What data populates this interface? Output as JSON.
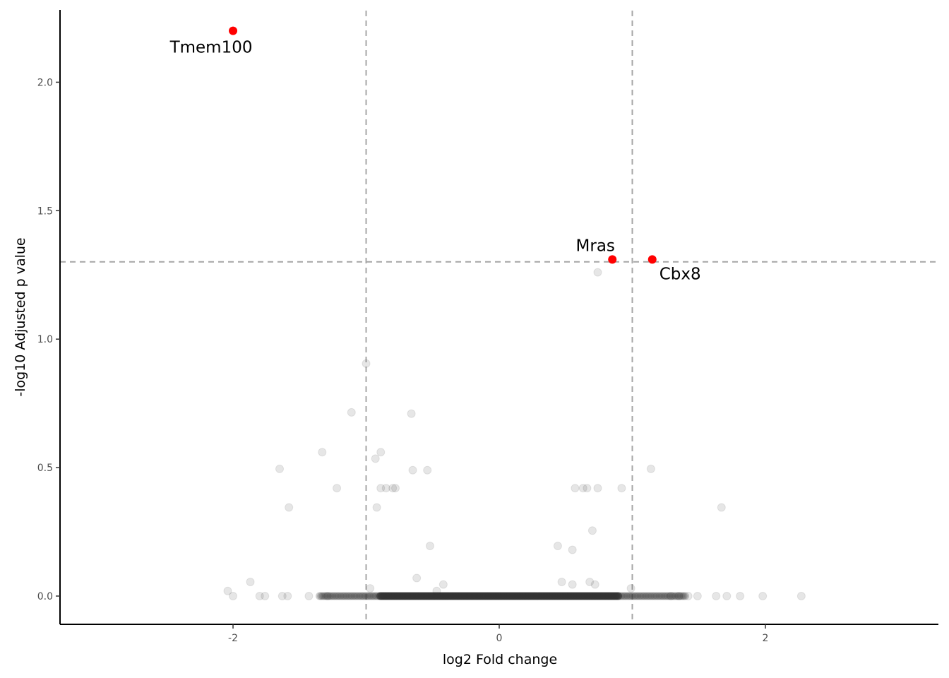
{
  "chart_data": {
    "type": "scatter",
    "title": "",
    "xlabel": "log2 Fold change",
    "ylabel": "-log10 Adjusted p value",
    "xlim": [
      -3.3,
      3.3
    ],
    "ylim": [
      -0.11,
      2.32
    ],
    "x_ticks": [
      {
        "value": -2,
        "label": "-2"
      },
      {
        "value": 0,
        "label": "0"
      },
      {
        "value": 2,
        "label": "2"
      }
    ],
    "y_ticks": [
      {
        "value": 0,
        "label": "0.0"
      },
      {
        "value": 0.5,
        "label": "0.5"
      },
      {
        "value": 1.0,
        "label": "1.0"
      },
      {
        "value": 1.5,
        "label": "1.5"
      },
      {
        "value": 2.0,
        "label": "2.0"
      }
    ],
    "thresholds": {
      "vertical": [
        -1,
        1
      ],
      "horizontal": [
        1.301
      ]
    },
    "grid": false,
    "colors": {
      "significant": "#ff0000",
      "background_points": "#333333",
      "threshold_lines": "#a6a6a6",
      "axis": "#000000"
    },
    "highlighted": [
      {
        "gene": "Tmem100",
        "x": -2.0,
        "y": 2.2
      },
      {
        "gene": "Mras",
        "x": 0.85,
        "y": 1.31
      },
      {
        "gene": "Cbx8",
        "x": 1.15,
        "y": 1.31
      }
    ],
    "points": [
      [
        -2.04,
        0.02
      ],
      [
        -2.0,
        0.0
      ],
      [
        -1.87,
        0.055
      ],
      [
        -1.8,
        0.0
      ],
      [
        -1.76,
        0.0
      ],
      [
        -1.65,
        0.495
      ],
      [
        -1.63,
        0.0
      ],
      [
        -1.59,
        0.0
      ],
      [
        -1.58,
        0.345
      ],
      [
        -1.43,
        0.0
      ],
      [
        -1.33,
        0.56
      ],
      [
        -1.29,
        0.0
      ],
      [
        -1.22,
        0.42
      ],
      [
        -1.11,
        0.715
      ],
      [
        -1.0,
        0.905
      ],
      [
        -0.97,
        0.03
      ],
      [
        -0.93,
        0.535
      ],
      [
        -0.92,
        0.345
      ],
      [
        -0.89,
        0.56
      ],
      [
        -0.89,
        0.42
      ],
      [
        -0.85,
        0.42
      ],
      [
        -0.8,
        0.42
      ],
      [
        -0.78,
        0.42
      ],
      [
        -0.66,
        0.71
      ],
      [
        -0.65,
        0.49
      ],
      [
        -0.62,
        0.07
      ],
      [
        -0.54,
        0.49
      ],
      [
        -0.52,
        0.195
      ],
      [
        -0.47,
        0.02
      ],
      [
        -0.42,
        0.045
      ],
      [
        0.44,
        0.195
      ],
      [
        0.47,
        0.055
      ],
      [
        0.55,
        0.045
      ],
      [
        0.55,
        0.18
      ],
      [
        0.57,
        0.42
      ],
      [
        0.63,
        0.42
      ],
      [
        0.66,
        0.42
      ],
      [
        0.68,
        0.055
      ],
      [
        0.7,
        0.255
      ],
      [
        0.72,
        0.045
      ],
      [
        0.74,
        0.42
      ],
      [
        0.74,
        1.26
      ],
      [
        0.92,
        0.42
      ],
      [
        0.99,
        0.03
      ],
      [
        1.14,
        0.495
      ],
      [
        1.29,
        0.0
      ],
      [
        1.35,
        0.0
      ],
      [
        1.42,
        0.0
      ],
      [
        1.49,
        0.0
      ],
      [
        1.63,
        0.0
      ],
      [
        1.67,
        0.345
      ],
      [
        1.71,
        0.0
      ],
      [
        1.81,
        0.0
      ],
      [
        1.98,
        0.0
      ],
      [
        2.27,
        0.0
      ]
    ],
    "baseline_cluster": {
      "x_from": -1.35,
      "x_to": 1.4,
      "y": 0.0
    }
  }
}
